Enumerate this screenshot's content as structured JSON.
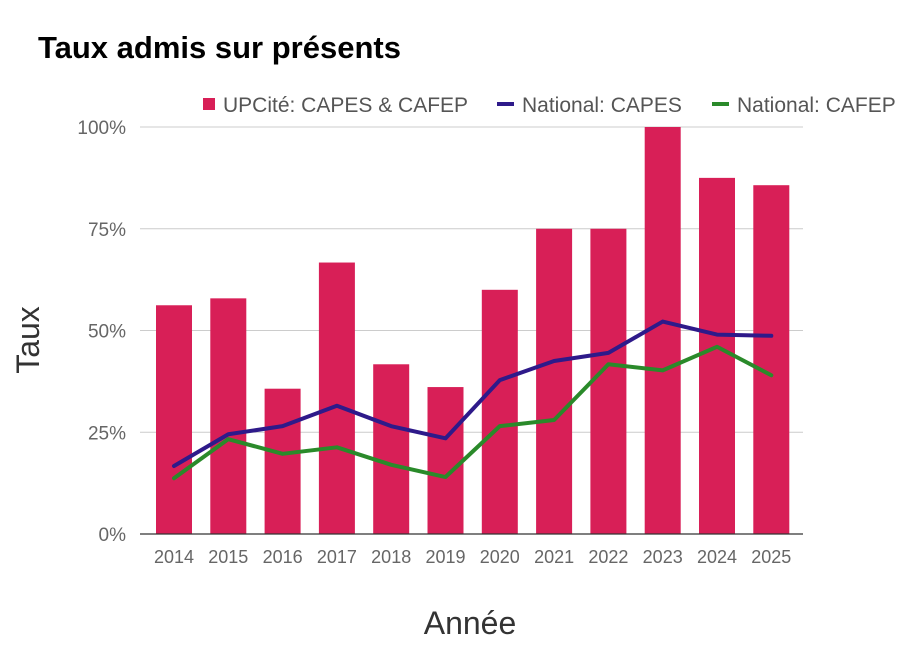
{
  "chart_data": {
    "type": "bar",
    "title": "Taux admis sur présents",
    "xlabel": "Année",
    "ylabel": "Taux",
    "categories": [
      "2014",
      "2015",
      "2016",
      "2017",
      "2018",
      "2019",
      "2020",
      "2021",
      "2022",
      "2023",
      "2024",
      "2025"
    ],
    "ylim": [
      0,
      1
    ],
    "yticks": [
      0,
      0.25,
      0.5,
      0.75,
      1
    ],
    "ytick_labels": [
      "0%",
      "25%",
      "50%",
      "75%",
      "100%"
    ],
    "grid": true,
    "legend_position": "top-right",
    "series": [
      {
        "name": "UPCité: CAPES & CAFEP",
        "type": "bar",
        "color": "#d81f57",
        "values": [
          0.562,
          0.579,
          0.357,
          0.667,
          0.417,
          0.361,
          0.6,
          0.75,
          0.75,
          1.0,
          0.875,
          0.857
        ]
      },
      {
        "name": "National: CAPES",
        "type": "line",
        "color": "#2e1a8a",
        "values": [
          0.167,
          0.245,
          0.265,
          0.315,
          0.265,
          0.235,
          0.378,
          0.425,
          0.445,
          0.522,
          0.49,
          0.487
        ]
      },
      {
        "name": "National: CAFEP",
        "type": "line",
        "color": "#2a8a2a",
        "values": [
          0.137,
          0.233,
          0.197,
          0.213,
          0.17,
          0.14,
          0.265,
          0.28,
          0.417,
          0.402,
          0.46,
          0.39
        ]
      }
    ]
  }
}
